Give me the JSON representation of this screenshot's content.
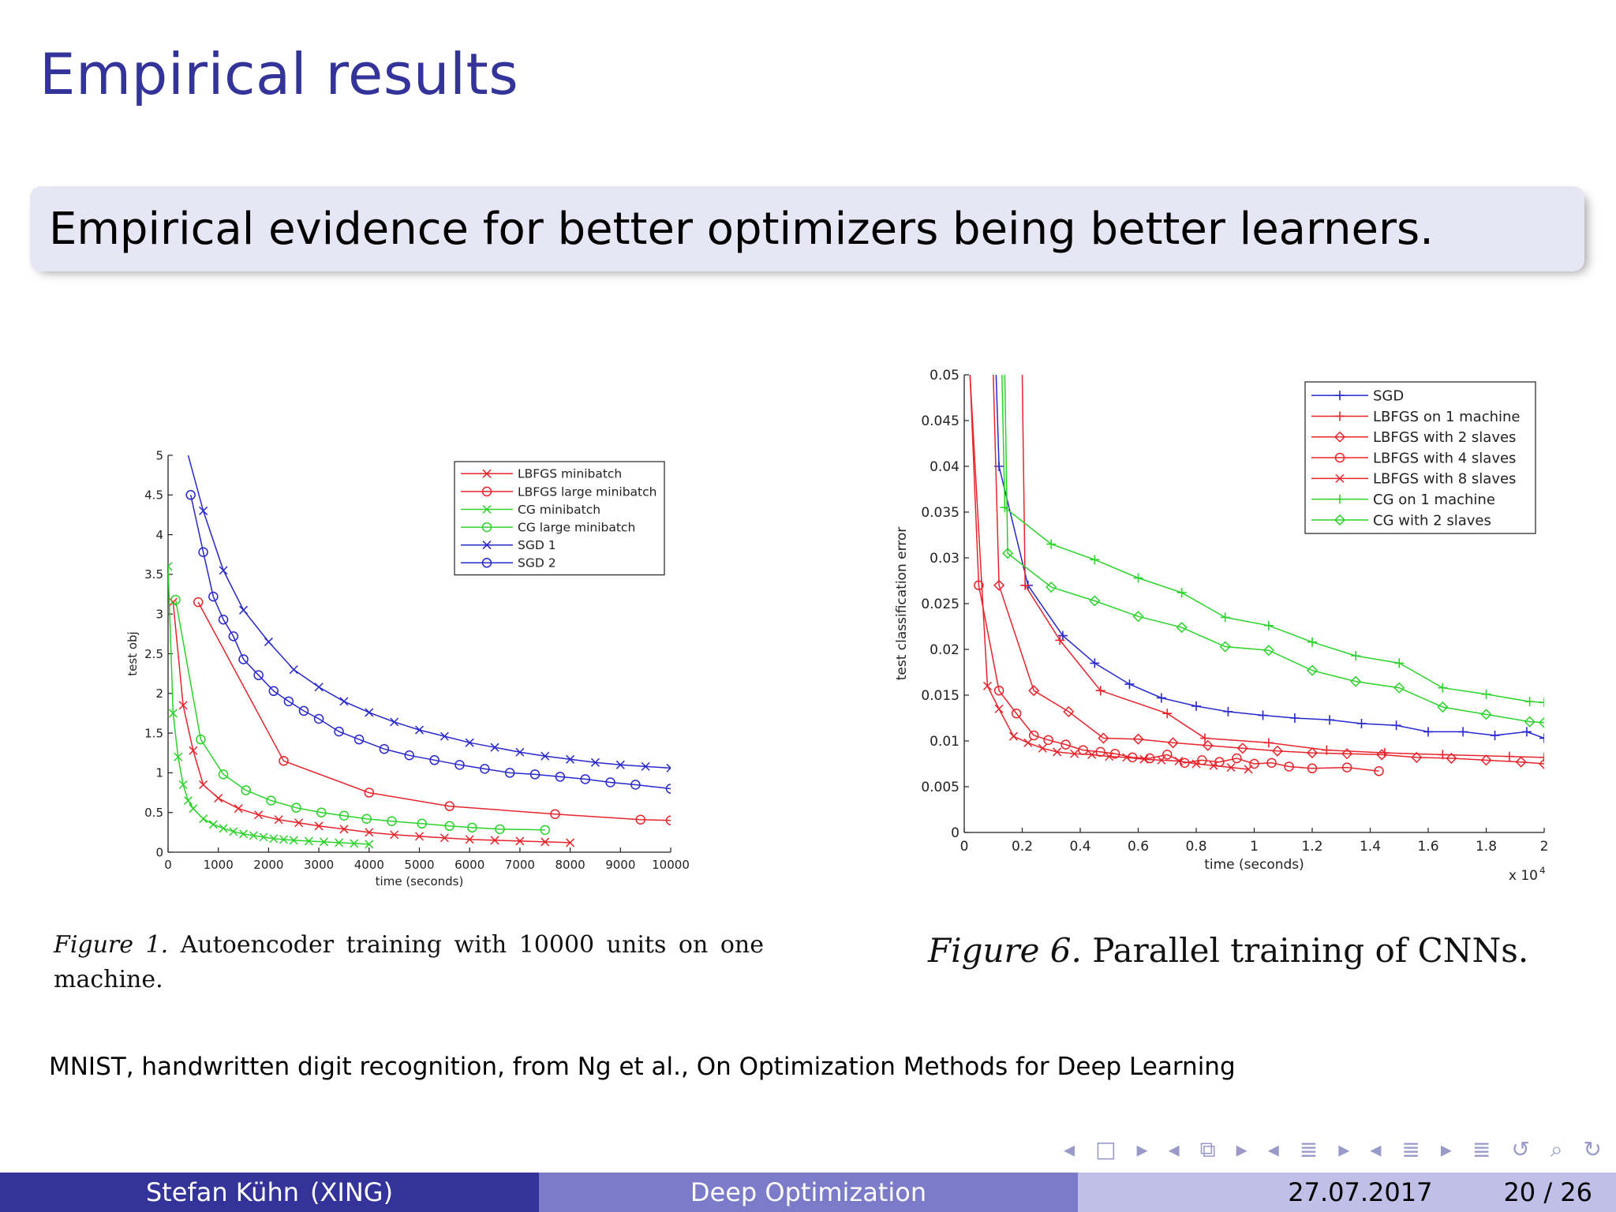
{
  "slide": {
    "title": "Empirical results",
    "block_text": "Empirical evidence for better optimizers being better learners.",
    "source_note": "MNIST, handwritten digit recognition, from Ng et al., On Optimization Methods for Deep Learning",
    "figure1_caption_label": "Figure 1.",
    "figure1_caption_text": "Autoencoder training with 10000 units on one machine.",
    "figure6_caption_label": "Figure 6.",
    "figure6_caption_text": "Parallel training of CNNs."
  },
  "footer": {
    "author": "Stefan Kühn",
    "affiliation": "(XING)",
    "talk_title": "Deep Optimization",
    "date": "27.07.2017",
    "page": "20 / 26"
  },
  "nav": {
    "symbols": [
      "◂",
      "□",
      "▸",
      "◂",
      "⧉",
      "▸",
      "◂",
      "≣",
      "▸",
      "◂",
      "≣",
      "▸",
      "≣",
      "↺",
      "⌕",
      "↻"
    ]
  },
  "colors": {
    "title": "#33339a",
    "block_bg": "#e6e6f4",
    "footer_left": "#33339a",
    "footer_mid": "#7b7bc9",
    "footer_right": "#bfbfe8",
    "red": "#e8242b",
    "green": "#2bd32b",
    "blue": "#2828cc"
  },
  "chart_data": [
    {
      "type": "line",
      "xlabel": "time (seconds)",
      "ylabel": "test obj",
      "xlim": [
        0,
        10000
      ],
      "ylim": [
        0,
        5
      ],
      "xticks": [
        0,
        1000,
        2000,
        3000,
        4000,
        5000,
        6000,
        7000,
        8000,
        9000,
        10000
      ],
      "yticks": [
        0,
        0.5,
        1,
        1.5,
        2,
        2.5,
        3,
        3.5,
        4,
        4.5,
        5
      ],
      "legend_position": "top-right",
      "series": [
        {
          "name": "LBFGS minibatch",
          "color": "red",
          "marker": "x",
          "x": [
            100,
            300,
            500,
            700,
            1000,
            1400,
            1800,
            2200,
            2600,
            3000,
            3500,
            4000,
            4500,
            5000,
            5500,
            6000,
            6500,
            7000,
            7500,
            8000
          ],
          "y": [
            3.15,
            1.85,
            1.28,
            0.85,
            0.68,
            0.55,
            0.47,
            0.41,
            0.37,
            0.33,
            0.29,
            0.25,
            0.22,
            0.2,
            0.18,
            0.16,
            0.15,
            0.14,
            0.13,
            0.12
          ]
        },
        {
          "name": "LBFGS large minibatch",
          "color": "red",
          "marker": "o",
          "x": [
            600,
            2300,
            4000,
            5600,
            7700,
            9400,
            10000
          ],
          "y": [
            3.15,
            1.15,
            0.75,
            0.58,
            0.48,
            0.41,
            0.4
          ]
        },
        {
          "name": "CG minibatch",
          "color": "green",
          "marker": "x",
          "x": [
            0,
            100,
            200,
            300,
            400,
            500,
            700,
            900,
            1100,
            1300,
            1500,
            1700,
            1900,
            2100,
            2300,
            2500,
            2800,
            3100,
            3400,
            3700,
            4000
          ],
          "y": [
            3.6,
            1.75,
            1.2,
            0.85,
            0.65,
            0.55,
            0.42,
            0.35,
            0.3,
            0.26,
            0.23,
            0.21,
            0.19,
            0.17,
            0.16,
            0.15,
            0.14,
            0.13,
            0.12,
            0.11,
            0.1
          ]
        },
        {
          "name": "CG large minibatch",
          "color": "green",
          "marker": "o",
          "x": [
            150,
            650,
            1100,
            1550,
            2050,
            2550,
            3050,
            3500,
            3950,
            4450,
            5050,
            5600,
            6050,
            6600,
            7500
          ],
          "y": [
            3.18,
            1.42,
            0.98,
            0.78,
            0.65,
            0.56,
            0.5,
            0.46,
            0.42,
            0.39,
            0.36,
            0.33,
            0.31,
            0.29,
            0.28
          ]
        },
        {
          "name": "SGD 1",
          "color": "blue",
          "marker": "x",
          "x": [
            400,
            700,
            1100,
            1500,
            2000,
            2500,
            3000,
            3500,
            4000,
            4500,
            5000,
            5500,
            6000,
            6500,
            7000,
            7500,
            8000,
            8500,
            9000,
            9500,
            10000
          ],
          "y": [
            5.0,
            4.3,
            3.55,
            3.05,
            2.65,
            2.3,
            2.08,
            1.9,
            1.76,
            1.64,
            1.54,
            1.46,
            1.38,
            1.32,
            1.26,
            1.21,
            1.17,
            1.13,
            1.1,
            1.08,
            1.06
          ]
        },
        {
          "name": "SGD 2",
          "color": "blue",
          "marker": "o",
          "x": [
            450,
            700,
            900,
            1100,
            1300,
            1500,
            1800,
            2100,
            2400,
            2700,
            3000,
            3400,
            3800,
            4300,
            4800,
            5300,
            5800,
            6300,
            6800,
            7300,
            7800,
            8300,
            8800,
            9300,
            10000
          ],
          "y": [
            4.5,
            3.78,
            3.22,
            2.93,
            2.72,
            2.43,
            2.23,
            2.03,
            1.9,
            1.78,
            1.68,
            1.52,
            1.42,
            1.3,
            1.22,
            1.16,
            1.1,
            1.05,
            1.0,
            0.98,
            0.95,
            0.92,
            0.88,
            0.85,
            0.8
          ]
        }
      ]
    },
    {
      "type": "line",
      "xlabel": "time (seconds)",
      "ylabel": "test classification error",
      "x_multiplier_label": "x 10",
      "x_multiplier_exp": "4",
      "xlim": [
        0,
        2
      ],
      "ylim": [
        0,
        0.05
      ],
      "xticks": [
        0,
        0.2,
        0.4,
        0.6,
        0.8,
        1,
        1.2,
        1.4,
        1.6,
        1.8,
        2
      ],
      "yticks": [
        0,
        0.005,
        0.01,
        0.015,
        0.02,
        0.025,
        0.03,
        0.035,
        0.04,
        0.045,
        0.05
      ],
      "legend_position": "top-right",
      "series": [
        {
          "name": "SGD",
          "color": "blue",
          "marker": "+",
          "x": [
            0.11,
            0.12,
            0.22,
            0.34,
            0.45,
            0.57,
            0.68,
            0.8,
            0.91,
            1.03,
            1.14,
            1.26,
            1.37,
            1.49,
            1.6,
            1.72,
            1.83,
            1.94,
            2.0
          ],
          "y": [
            0.05,
            0.04,
            0.027,
            0.0215,
            0.0185,
            0.0162,
            0.0147,
            0.0138,
            0.0132,
            0.0128,
            0.0125,
            0.0123,
            0.0119,
            0.0117,
            0.011,
            0.011,
            0.0106,
            0.011,
            0.0103
          ]
        },
        {
          "name": "LBFGS on 1 machine",
          "color": "red",
          "marker": "+",
          "x": [
            0.2,
            0.21,
            0.33,
            0.47,
            0.7,
            0.83,
            1.05,
            1.25,
            1.45,
            1.65,
            1.88,
            2.0
          ],
          "y": [
            0.05,
            0.027,
            0.021,
            0.0155,
            0.013,
            0.0103,
            0.0098,
            0.009,
            0.0087,
            0.0085,
            0.0083,
            0.0082
          ]
        },
        {
          "name": "LBFGS with 2 slaves",
          "color": "red",
          "marker": "diamond",
          "x": [
            0.1,
            0.12,
            0.24,
            0.36,
            0.48,
            0.6,
            0.72,
            0.84,
            0.96,
            1.08,
            1.2,
            1.32,
            1.44,
            1.56,
            1.68,
            1.8,
            1.92,
            2.0
          ],
          "y": [
            0.05,
            0.027,
            0.0155,
            0.0132,
            0.0103,
            0.0102,
            0.0098,
            0.0095,
            0.0092,
            0.0089,
            0.0087,
            0.0086,
            0.0085,
            0.0082,
            0.0081,
            0.0079,
            0.0077,
            0.0075
          ]
        },
        {
          "name": "LBFGS with 4 slaves",
          "color": "red",
          "marker": "o",
          "x": [
            0.02,
            0.05,
            0.12,
            0.18,
            0.24,
            0.29,
            0.35,
            0.41,
            0.47,
            0.52,
            0.58,
            0.64,
            0.7,
            0.76,
            0.82,
            0.88,
            0.94,
            1.0,
            1.06,
            1.12,
            1.2,
            1.32,
            1.43
          ],
          "y": [
            0.05,
            0.027,
            0.0155,
            0.013,
            0.0106,
            0.0101,
            0.0096,
            0.009,
            0.0088,
            0.0086,
            0.0082,
            0.0081,
            0.0085,
            0.0076,
            0.0079,
            0.0077,
            0.0081,
            0.0075,
            0.0076,
            0.0072,
            0.007,
            0.0071,
            0.0067
          ]
        },
        {
          "name": "LBFGS with 8 slaves",
          "color": "red",
          "marker": "x",
          "x": [
            0.02,
            0.08,
            0.12,
            0.17,
            0.22,
            0.27,
            0.32,
            0.38,
            0.44,
            0.5,
            0.56,
            0.62,
            0.68,
            0.74,
            0.8,
            0.86,
            0.92,
            0.98
          ],
          "y": [
            0.05,
            0.016,
            0.0135,
            0.0105,
            0.0098,
            0.0092,
            0.0088,
            0.0086,
            0.0085,
            0.0083,
            0.0082,
            0.008,
            0.0079,
            0.0078,
            0.0075,
            0.0073,
            0.0071,
            0.0069
          ]
        },
        {
          "name": "CG on 1 machine",
          "color": "green",
          "marker": "+",
          "x": [
            0.13,
            0.14,
            0.3,
            0.45,
            0.6,
            0.75,
            0.9,
            1.05,
            1.2,
            1.35,
            1.5,
            1.65,
            1.8,
            1.95,
            2.0
          ],
          "y": [
            0.05,
            0.0355,
            0.0315,
            0.0298,
            0.0278,
            0.0262,
            0.0235,
            0.0226,
            0.0208,
            0.0193,
            0.0185,
            0.0158,
            0.0151,
            0.0143,
            0.0142
          ]
        },
        {
          "name": "CG with 2 slaves",
          "color": "green",
          "marker": "diamond",
          "x": [
            0.14,
            0.15,
            0.3,
            0.45,
            0.6,
            0.75,
            0.9,
            1.05,
            1.2,
            1.35,
            1.5,
            1.65,
            1.8,
            1.95,
            2.0
          ],
          "y": [
            0.05,
            0.0305,
            0.0268,
            0.0253,
            0.0236,
            0.0224,
            0.0203,
            0.0199,
            0.0177,
            0.0165,
            0.0158,
            0.0137,
            0.0129,
            0.0121,
            0.012
          ]
        }
      ]
    }
  ]
}
